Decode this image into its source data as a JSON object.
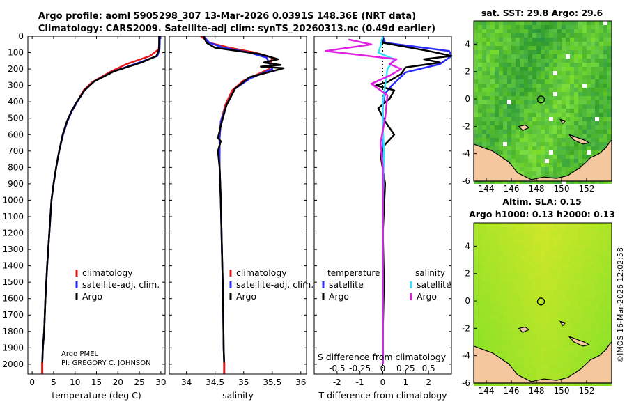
{
  "title_line1": "Argo profile: aoml 5905298_307 13-Mar-2026 0.0391S 148.36E (NRT data)",
  "title_line2": "Climatology: CARS2009. Satellite-adj clim: synTS_20260313.nc (0.49d earlier)",
  "map1_title": "sat. SST: 29.8 Argo: 29.6",
  "map2_title1": "Altim. SLA: 0.15",
  "map2_title2": "Argo h1000: 0.13 h2000: 0.13",
  "timestamp": "©IMOS 16-Mar-2026 12:02:58",
  "credit_line1": "Argo PMEL",
  "credit_line2": "PI: GREGORY C. JOHNSON",
  "diff_legend_temp_title": "temperature",
  "diff_legend_sal_title": "salinity",
  "colors": {
    "climatology": "#e41a1c",
    "satellite": "#2a2aff",
    "argo": "#000000",
    "sal_satellite": "#33e0ff",
    "sal_argo": "#e020e0",
    "land": "#f5c79f"
  },
  "chart_data": [
    {
      "type": "line",
      "name": "temperature-profile",
      "xlabel": "temperature (deg C)",
      "xlim": [
        -1,
        31
      ],
      "ylim": [
        2060,
        0
      ],
      "xticks": [
        "0",
        "5",
        "10",
        "15",
        "20",
        "25",
        "30"
      ],
      "xtick_values": [
        0,
        5,
        10,
        15,
        20,
        25,
        30
      ],
      "yticks": [
        "0",
        "100",
        "200",
        "300",
        "400",
        "500",
        "600",
        "700",
        "800",
        "900",
        "1000",
        "1100",
        "1200",
        "1300",
        "1400",
        "1500",
        "1600",
        "1700",
        "1800",
        "1900",
        "2000"
      ],
      "ytick_values": [
        0,
        100,
        200,
        300,
        400,
        500,
        600,
        700,
        800,
        900,
        1000,
        1100,
        1200,
        1300,
        1400,
        1500,
        1600,
        1700,
        1800,
        1900,
        2000
      ],
      "legend": [
        "climatology",
        "satellite-adj. clim.",
        "Argo"
      ],
      "series": [
        {
          "name": "climatology",
          "x": [
            29.8,
            29.5,
            27.5,
            22,
            18,
            14,
            12,
            10.5,
            9.2,
            8.2,
            7.2,
            6.3,
            5.6,
            5.0,
            4.5,
            4.0,
            3.5,
            3.1,
            2.8,
            2.5,
            2.35
          ],
          "y": [
            0,
            80,
            120,
            170,
            220,
            280,
            330,
            400,
            460,
            520,
            600,
            700,
            800,
            900,
            1000,
            1200,
            1400,
            1600,
            1800,
            1900,
            2000
          ]
        },
        {
          "name": "satellite-adj. clim.",
          "x": [
            29.8,
            29.7,
            29.2,
            25,
            19,
            14.5,
            12.2,
            10.5,
            9.2,
            8.2,
            7.2,
            6.3,
            5.6,
            5.0,
            4.5,
            4.0,
            3.5,
            3.1,
            2.8,
            2.5,
            2.35
          ],
          "y": [
            0,
            80,
            120,
            160,
            215,
            275,
            330,
            400,
            460,
            520,
            600,
            700,
            800,
            900,
            1000,
            1200,
            1400,
            1600,
            1800,
            1900,
            2000
          ]
        },
        {
          "name": "Argo",
          "x": [
            29.6,
            29.6,
            29.0,
            25.5,
            19,
            14.5,
            12.2,
            10.4,
            9.1,
            8.1,
            7.1,
            6.3,
            5.6,
            5.0,
            4.5,
            4.0,
            3.5,
            3.1,
            2.8,
            2.5,
            2.35
          ],
          "y": [
            0,
            80,
            120,
            160,
            215,
            275,
            330,
            400,
            460,
            520,
            600,
            700,
            800,
            900,
            1000,
            1200,
            1400,
            1600,
            1800,
            1900,
            2000
          ]
        }
      ]
    },
    {
      "type": "line",
      "name": "salinity-profile",
      "xlabel": "salinity",
      "xlim": [
        33.7,
        36.1
      ],
      "ylim": [
        2060,
        0
      ],
      "xticks": [
        "34",
        "34.5",
        "35",
        "35.5",
        "36"
      ],
      "xtick_values": [
        34,
        34.5,
        35,
        35.5,
        36
      ],
      "legend": [
        "climatology",
        "satellite-adj. clim.",
        "Argo"
      ],
      "series": [
        {
          "name": "climatology",
          "x": [
            34.25,
            34.4,
            34.75,
            35.2,
            35.5,
            35.45,
            35.0,
            34.8,
            34.68,
            34.6,
            34.58,
            34.58,
            34.6,
            34.62,
            34.64,
            34.65,
            34.66
          ],
          "y": [
            0,
            40,
            70,
            100,
            130,
            200,
            270,
            330,
            420,
            520,
            620,
            800,
            1000,
            1300,
            1600,
            1900,
            2000
          ]
        },
        {
          "name": "satellite-adj. clim.",
          "x": [
            34.3,
            34.4,
            34.65,
            35.1,
            35.4,
            35.5,
            35.1,
            34.85,
            34.7,
            34.6,
            34.58,
            34.58,
            34.6,
            34.62,
            34.64,
            34.65,
            34.66
          ],
          "y": [
            0,
            40,
            70,
            100,
            130,
            200,
            260,
            320,
            420,
            520,
            620,
            800,
            1000,
            1300,
            1600,
            1900,
            2000
          ]
        },
        {
          "name": "Argo",
          "x": [
            34.3,
            34.35,
            34.5,
            35.3,
            35.6,
            35.35,
            35.65,
            35.3,
            35.7,
            35.1,
            34.85,
            34.7,
            34.62,
            34.55,
            34.6,
            34.55,
            34.58,
            34.6,
            34.62,
            34.64,
            34.65,
            34.66
          ],
          "y": [
            0,
            40,
            70,
            110,
            140,
            160,
            175,
            185,
            195,
            250,
            320,
            420,
            520,
            620,
            640,
            700,
            800,
            1000,
            1300,
            1600,
            1900,
            2000
          ]
        }
      ]
    },
    {
      "type": "line",
      "name": "difference-profile",
      "xlabel": "T difference from climatology",
      "xlabel_top": "S difference from climatology",
      "xlim": [
        -3,
        3
      ],
      "ylim": [
        2060,
        0
      ],
      "xticks": [
        "-2",
        "-1",
        "0",
        "1",
        "2"
      ],
      "xtick_values": [
        -2,
        -1,
        0,
        1,
        2
      ],
      "sticks": [
        "-0.5",
        "-0.25",
        "0",
        "0.25",
        "0.5"
      ],
      "stick_values": [
        -2,
        -1,
        0,
        1,
        2
      ],
      "legend_temp": [
        "satellite",
        "Argo"
      ],
      "legend_sal": [
        "satellite",
        "Argo"
      ],
      "series": [
        {
          "name": "temperature satellite",
          "x": [
            0,
            0.1,
            2.9,
            3.0,
            2.5,
            1.0,
            0.4,
            0.1,
            0,
            0,
            0,
            0,
            0,
            0
          ],
          "y": [
            0,
            40,
            90,
            120,
            170,
            220,
            300,
            350,
            420,
            600,
            1000,
            1400,
            1800,
            2000
          ]
        },
        {
          "name": "temperature Argo",
          "x": [
            0,
            0,
            2.0,
            3.0,
            1.8,
            2.5,
            1.0,
            0.8,
            0.2,
            -0.3,
            0.5,
            0.3,
            -0.2,
            0.1,
            0.5,
            0.1,
            -0.1,
            0.1,
            0,
            0.05,
            0,
            0
          ],
          "y": [
            0,
            40,
            90,
            120,
            140,
            160,
            190,
            230,
            280,
            300,
            330,
            380,
            440,
            520,
            600,
            660,
            720,
            900,
            1200,
            1500,
            1800,
            2000
          ]
        },
        {
          "name": "salinity satellite",
          "x": [
            0,
            -0.1,
            -0.2,
            0.5,
            0.2,
            0.1,
            0,
            0,
            0.05,
            0,
            0,
            0
          ],
          "y": [
            0,
            60,
            100,
            140,
            200,
            300,
            400,
            550,
            700,
            1000,
            1500,
            2000
          ]
        },
        {
          "name": "salinity Argo",
          "x": [
            -1.5,
            -0.5,
            -2.5,
            0.6,
            0.3,
            0.8,
            0.3,
            -0.5,
            0.2,
            0.1,
            -0.1,
            0,
            0,
            0,
            0
          ],
          "y": [
            20,
            50,
            90,
            140,
            170,
            200,
            240,
            290,
            360,
            500,
            650,
            800,
            1200,
            1600,
            2000
          ]
        }
      ]
    },
    {
      "type": "heatmap",
      "name": "sst-map",
      "title": "sat. SST: 29.8 Argo: 29.6",
      "xlim": [
        143,
        154
      ],
      "ylim": [
        -6,
        5.7
      ],
      "xticks": [
        "144",
        "146",
        "148",
        "150",
        "152"
      ],
      "xtick_values": [
        144,
        146,
        148,
        150,
        152
      ],
      "yticks": [
        "4",
        "2",
        "0",
        "-2",
        "-4",
        "-6"
      ],
      "ytick_values": [
        4,
        2,
        0,
        -2,
        -4,
        -6
      ],
      "float_position": [
        148.36,
        -0.04
      ]
    },
    {
      "type": "heatmap",
      "name": "sla-map",
      "title": "Altim. SLA: 0.15",
      "xlim": [
        143,
        154
      ],
      "ylim": [
        -6,
        5.7
      ],
      "xticks": [
        "144",
        "146",
        "148",
        "150",
        "152"
      ],
      "xtick_values": [
        144,
        146,
        148,
        150,
        152
      ],
      "yticks": [
        "4",
        "2",
        "0",
        "-2",
        "-4",
        "-6"
      ],
      "ytick_values": [
        4,
        2,
        0,
        -2,
        -4,
        -6
      ],
      "float_position": [
        148.36,
        -0.04
      ]
    }
  ]
}
